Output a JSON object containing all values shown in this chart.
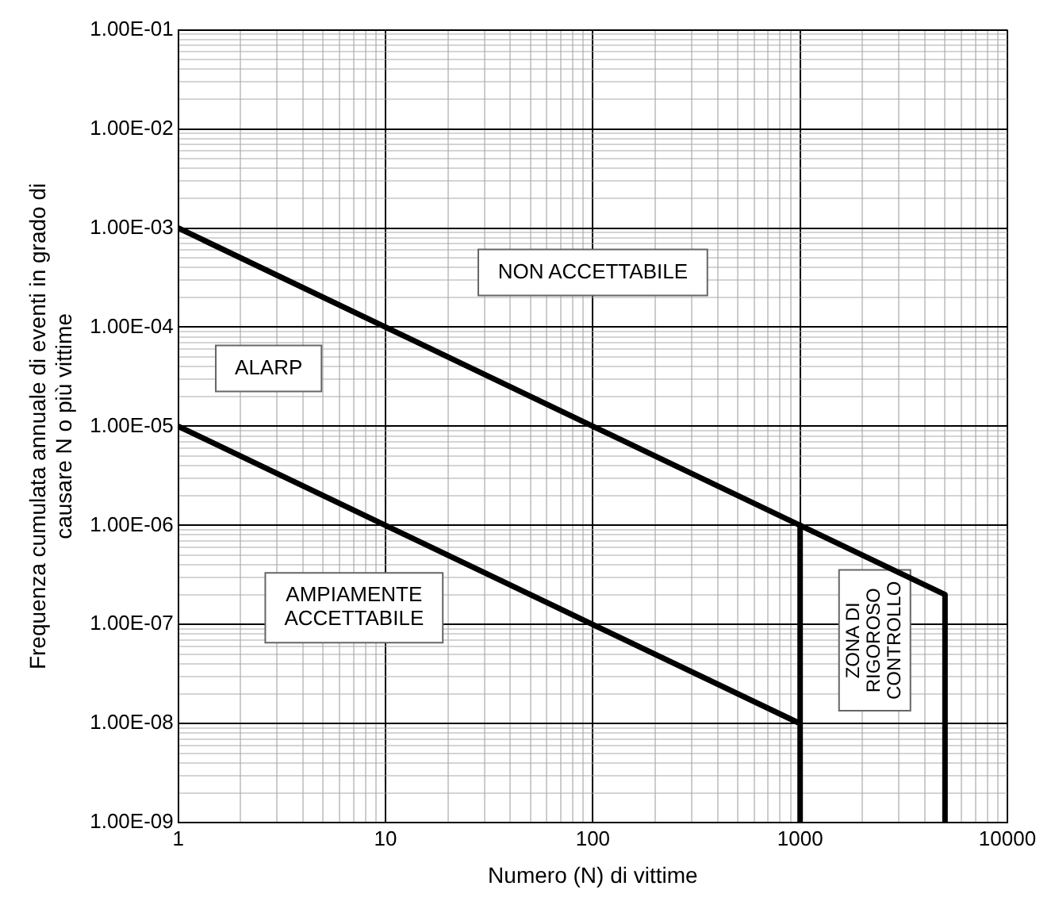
{
  "chart_data": {
    "type": "line",
    "xlabel": "Numero (N) di vittime",
    "ylabel": "Frequenza cumulata annuale di eventi in grado di\ncausare N o più vittime",
    "log": "xy",
    "grid": true,
    "legend": false,
    "marker": "none",
    "line_style": "solid",
    "xlim": [
      1,
      10000
    ],
    "xticks": [
      1,
      10,
      100,
      1000,
      10000
    ],
    "ylim": [
      1e-09,
      0.1
    ],
    "yticks": [
      {
        "value": 1e-09,
        "label": "1.00E-09"
      },
      {
        "value": 1e-08,
        "label": "1.00E-08"
      },
      {
        "value": 1e-07,
        "label": "1.00E-07"
      },
      {
        "value": 1e-06,
        "label": "1.00E-06"
      },
      {
        "value": 1e-05,
        "label": "1.00E-05"
      },
      {
        "value": 0.0001,
        "label": "1.00E-04"
      },
      {
        "value": 0.001,
        "label": "1.00E-03"
      },
      {
        "value": 0.01,
        "label": "1.00E-02"
      },
      {
        "value": 0.1,
        "label": "1.00E-01"
      }
    ],
    "series": [
      {
        "color": "#000000",
        "x": [
          1,
          1000,
          5000,
          5000
        ],
        "values": [
          0.001,
          1e-06,
          2e-07,
          1e-09
        ]
      },
      {
        "color": "#000000",
        "x": [
          1,
          1000,
          1000,
          1000
        ],
        "values": [
          1e-05,
          1e-08,
          1e-06,
          1e-09
        ]
      }
    ],
    "annotations": [
      "NON ACCETTABILE",
      "ALARP",
      "AMPIAMENTE\nACCETTABILE",
      "ZONA DI\nRIGOROSO\nCONTROLLO"
    ]
  }
}
